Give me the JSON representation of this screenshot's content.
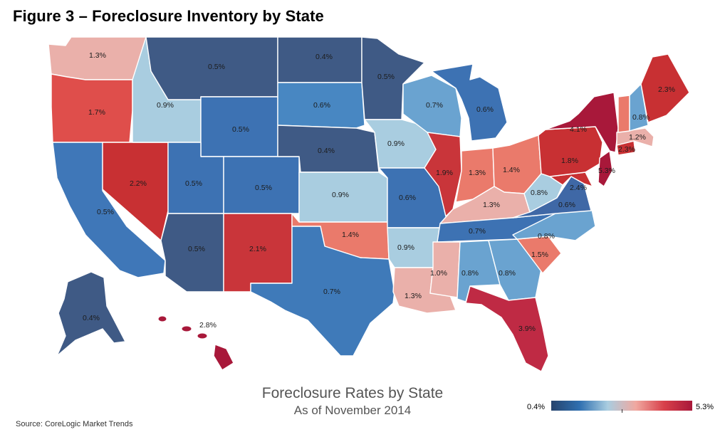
{
  "figure_title": "Figure 3 – Foreclosure Inventory by State",
  "map_title": "Foreclosure Rates by State",
  "map_subtitle": "As of November 2014",
  "source": "Source: CoreLogic Market Trends",
  "legend": {
    "min": "0.4%",
    "max": "5.3%"
  },
  "colors": {
    "scale_low": "#26436d",
    "scale_mid_low": "#2f6fb0",
    "scale_mid": "#a9cde0",
    "scale_mid_high": "#f0a8a0",
    "scale_high": "#a8183a"
  },
  "states": {
    "WA": "1.3%",
    "OR": "1.7%",
    "CA": "0.5%",
    "NV": "2.2%",
    "ID": "0.9%",
    "MT": "0.5%",
    "WY": "0.5%",
    "UT": "0.5%",
    "AZ": "0.5%",
    "CO": "0.5%",
    "NM": "2.1%",
    "ND": "0.4%",
    "SD": "0.6%",
    "NE": "0.4%",
    "KS": "0.9%",
    "OK": "1.4%",
    "TX": "0.7%",
    "MN": "0.5%",
    "IA": "0.9%",
    "MO": "0.6%",
    "AR": "0.9%",
    "LA": "1.3%",
    "WI": "0.7%",
    "IL": "1.9%",
    "MI": "0.6%",
    "IN": "1.3%",
    "OH": "1.4%",
    "KY": "1.3%",
    "TN": "0.7%",
    "MS": "1.0%",
    "AL": "0.8%",
    "GA": "0.8%",
    "FL": "3.9%",
    "SC": "1.5%",
    "NC": "0.8%",
    "VA": "0.6%",
    "WV": "0.8%",
    "PA": "1.8%",
    "NY": "4.1%",
    "ME": "2.3%",
    "NH": "0.8%",
    "MA": "1.2%",
    "CT": "2.3%",
    "NJ": "5.3%",
    "MD": "2.4%",
    "AK": "0.4%",
    "HI": "2.8%"
  }
}
